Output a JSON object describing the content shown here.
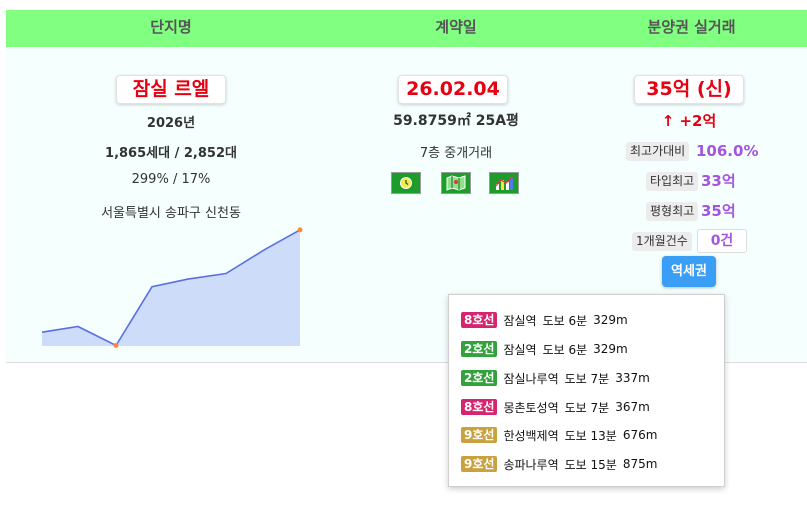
{
  "header": {
    "col_name": "단지명",
    "col_date": "계약일",
    "col_price": "분양권 실거래"
  },
  "complex": {
    "name": "잠실 르엘",
    "year": "2026년",
    "households": "1,865세대 / 2,852대",
    "ratio": "299% / 17%",
    "address": "서울특별시 송파구 신천동"
  },
  "contract": {
    "date": "26.02.04",
    "area": "59.8759㎡ 25A평",
    "floor": "7층 중개거래",
    "icons": [
      "clock-icon",
      "map-icon",
      "chart-icon"
    ]
  },
  "price": {
    "amount": "35억 (신)",
    "change": "↑ +2억",
    "max_ratio_label": "최고가대비",
    "max_ratio_value": "106.0%",
    "type_max_label": "타입최고",
    "type_max_value": "33억",
    "pyeong_max_label": "평형최고",
    "pyeong_max_value": "35억",
    "monthly_label": "1개월건수",
    "monthly_value": "0건",
    "station_button": "역세권"
  },
  "stations": [
    {
      "line": "8호선",
      "color": "#d6246e",
      "name": "잠실역",
      "walk": "도보 6분",
      "dist": "329m"
    },
    {
      "line": "2호선",
      "color": "#33a23d",
      "name": "잠실역",
      "walk": "도보 6분",
      "dist": "329m"
    },
    {
      "line": "2호선",
      "color": "#33a23d",
      "name": "잠실나루역",
      "walk": "도보 7분",
      "dist": "337m"
    },
    {
      "line": "8호선",
      "color": "#d6246e",
      "name": "몽촌토성역",
      "walk": "도보 7분",
      "dist": "367m"
    },
    {
      "line": "9호선",
      "color": "#c9a13e",
      "name": "한성백제역",
      "walk": "도보 13분",
      "dist": "676m"
    },
    {
      "line": "9호선",
      "color": "#c9a13e",
      "name": "송파나루역",
      "walk": "도보 15분",
      "dist": "875m"
    }
  ],
  "chart_data": {
    "type": "area",
    "x": [
      0,
      1,
      2,
      3,
      4,
      5,
      6,
      7
    ],
    "values": [
      30.6,
      30.9,
      29.9,
      33.0,
      33.4,
      33.7,
      35.0,
      36.0
    ],
    "highlight_points": [
      2,
      7
    ],
    "fill_color": "#cddcf8",
    "line_color": "#5a6fe0",
    "marker_color": "#ff8a3d"
  }
}
